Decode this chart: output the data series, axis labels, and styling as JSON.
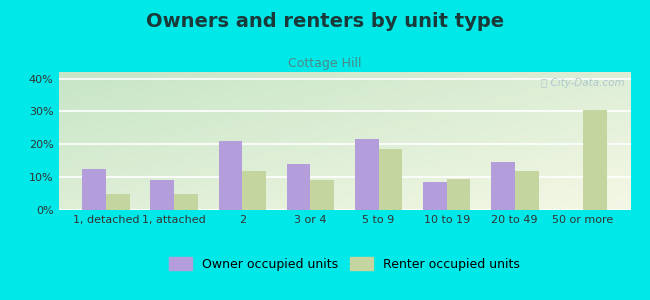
{
  "title": "Owners and renters by unit type",
  "subtitle": "Cottage Hill",
  "categories": [
    "1, detached",
    "1, attached",
    "2",
    "3 or 4",
    "5 to 9",
    "10 to 19",
    "20 to 49",
    "50 or more"
  ],
  "owner_values": [
    12.5,
    9.0,
    21.0,
    14.0,
    21.5,
    8.5,
    14.5,
    0.0
  ],
  "renter_values": [
    5.0,
    5.0,
    12.0,
    9.0,
    18.5,
    9.5,
    12.0,
    30.5
  ],
  "owner_color": "#b39ddb",
  "renter_color": "#c5d5a0",
  "outer_bg": "#00e8e8",
  "ylim": [
    0,
    42
  ],
  "yticks": [
    0,
    10,
    20,
    30,
    40
  ],
  "ytick_labels": [
    "0%",
    "10%",
    "20%",
    "30%",
    "40%"
  ],
  "legend_owner": "Owner occupied units",
  "legend_renter": "Renter occupied units",
  "bar_width": 0.35,
  "title_fontsize": 14,
  "subtitle_fontsize": 9,
  "tick_fontsize": 8,
  "legend_fontsize": 9,
  "title_color": "#1a3a3a",
  "subtitle_color": "#4a8a8a",
  "watermark_color": "#b0c8d0",
  "grid_color": "#ffffff"
}
